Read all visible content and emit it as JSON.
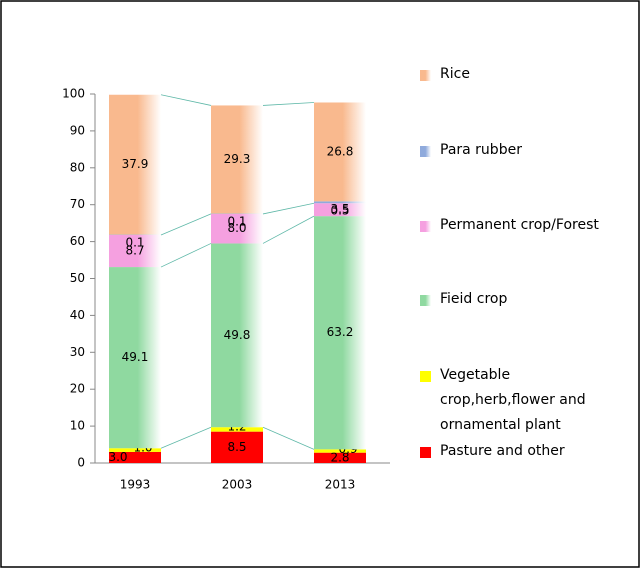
{
  "chart_data": {
    "type": "stacked_bar",
    "categories": [
      "1993",
      "2003",
      "2013"
    ],
    "series": [
      {
        "name": "Pasture and other",
        "color": "#ff0000",
        "values": [
          3.0,
          8.5,
          2.8
        ],
        "value_labels": [
          "3.0",
          "8.5",
          "2.8"
        ]
      },
      {
        "name": "Vegetable crop,herb,flower and ornamental plant",
        "color": "#ffff00",
        "values": [
          1.0,
          1.2,
          0.9
        ],
        "value_labels": [
          "1.0",
          "1.2",
          "0.9"
        ]
      },
      {
        "name": "Fieid crop",
        "color": "#8fd9a0",
        "values": [
          49.1,
          49.8,
          63.2
        ],
        "value_labels": [
          "49.1",
          "49.8",
          "63.2"
        ]
      },
      {
        "name": "Permanent crop/Forest",
        "color": "#f5a0e0",
        "values": [
          8.7,
          8.0,
          3.5
        ],
        "value_labels": [
          "8.7",
          "8.0",
          "3.5"
        ]
      },
      {
        "name": "Para rubber",
        "color": "#8faadc",
        "values": [
          0.1,
          0.1,
          0.5
        ],
        "value_labels": [
          "0.1",
          "0.1",
          "0.5"
        ]
      },
      {
        "name": "Rice",
        "color": "#f9b98e",
        "values": [
          37.9,
          29.3,
          26.8
        ],
        "value_labels": [
          "37.9",
          "29.3",
          "26.8"
        ]
      }
    ],
    "ylim": [
      0,
      100
    ],
    "yticks": [
      0,
      10,
      20,
      30,
      40,
      50,
      60,
      70,
      80,
      90,
      100
    ],
    "legend": "right"
  }
}
